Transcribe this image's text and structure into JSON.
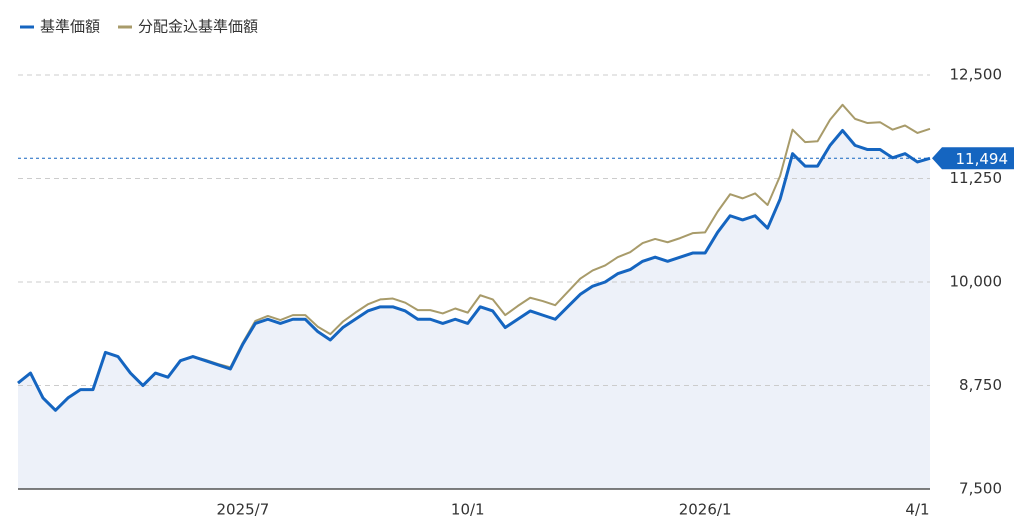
{
  "chart_data": {
    "type": "line",
    "categories": [
      null,
      null,
      null,
      null,
      null,
      null,
      null,
      null,
      null,
      null,
      null,
      null,
      null,
      null,
      null,
      null,
      null,
      null,
      "2025/7",
      null,
      null,
      null,
      null,
      null,
      null,
      null,
      null,
      null,
      null,
      null,
      null,
      null,
      null,
      null,
      null,
      null,
      "10/1",
      null,
      null,
      null,
      null,
      null,
      null,
      null,
      null,
      null,
      null,
      null,
      null,
      null,
      null,
      null,
      null,
      null,
      null,
      "2026/1",
      null,
      null,
      null,
      null,
      null,
      null,
      null,
      null,
      null,
      null,
      null,
      null,
      null,
      null,
      null,
      null,
      "4/1",
      null
    ],
    "series": [
      {
        "name": "基準価額",
        "color": "#1565c0",
        "values": [
          8780,
          8900,
          8600,
          8450,
          8600,
          8700,
          8700,
          9150,
          9100,
          8900,
          8750,
          8900,
          8850,
          9050,
          9100,
          9050,
          9000,
          8950,
          9250,
          9500,
          9550,
          9500,
          9550,
          9550,
          9400,
          9300,
          9450,
          9550,
          9650,
          9700,
          9700,
          9650,
          9550,
          9550,
          9500,
          9550,
          9500,
          9700,
          9650,
          9450,
          9550,
          9650,
          9600,
          9550,
          9700,
          9850,
          9950,
          10000,
          10100,
          10150,
          10250,
          10300,
          10250,
          10300,
          10350,
          10350,
          10600,
          10800,
          10750,
          10800,
          10650,
          11000,
          11550,
          11400,
          11400,
          11650,
          11830,
          11650,
          11600,
          11600,
          11500,
          11550,
          11450,
          11494
        ]
      },
      {
        "name": "分配金込基準価額",
        "color": "#a89b6a",
        "values": [
          8780,
          8900,
          8600,
          8450,
          8600,
          8700,
          8700,
          9150,
          9100,
          8900,
          8750,
          8900,
          8850,
          9050,
          9100,
          9060,
          9010,
          8970,
          9270,
          9530,
          9590,
          9540,
          9600,
          9600,
          9460,
          9370,
          9520,
          9630,
          9730,
          9790,
          9800,
          9750,
          9660,
          9660,
          9620,
          9680,
          9630,
          9840,
          9790,
          9600,
          9710,
          9810,
          9770,
          9720,
          9880,
          10040,
          10140,
          10200,
          10300,
          10360,
          10470,
          10520,
          10480,
          10530,
          10590,
          10600,
          10850,
          11060,
          11010,
          11070,
          10930,
          11280,
          11840,
          11690,
          11700,
          11960,
          12140,
          11970,
          11920,
          11930,
          11840,
          11890,
          11800,
          11850
        ]
      }
    ],
    "current_value": {
      "value": 11494,
      "label": "11,494"
    },
    "ylim": [
      7500,
      12500
    ],
    "yticks": [
      {
        "value": 7500,
        "label": "7,500"
      },
      {
        "value": 8750,
        "label": "8,750"
      },
      {
        "value": 10000,
        "label": "10,000"
      },
      {
        "value": 11250,
        "label": "11,250"
      },
      {
        "value": 12500,
        "label": "12,500"
      }
    ],
    "grid": true,
    "legend": "top-left",
    "area_fill": "#edf1f9"
  }
}
